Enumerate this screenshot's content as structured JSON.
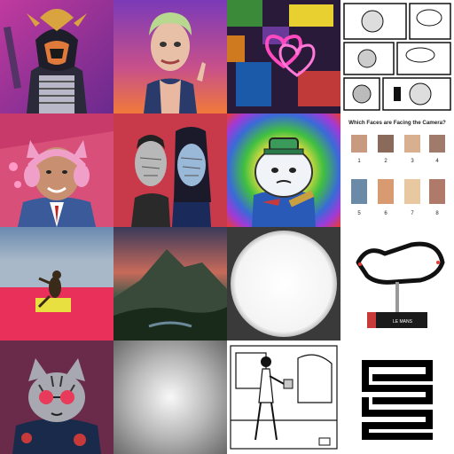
{
  "tiles": [
    {
      "index": 1,
      "icon": "samurai-robot-image"
    },
    {
      "index": 2,
      "icon": "caricature-portrait-image"
    },
    {
      "index": 3,
      "icon": "neon-glitch-hearts-image"
    },
    {
      "index": 4,
      "icon": "manga-page-image"
    },
    {
      "index": 5,
      "icon": "cat-headphones-graffiti-image"
    },
    {
      "index": 6,
      "icon": "distorted-faces-image"
    },
    {
      "index": 7,
      "icon": "cartoon-snowman-rainbow-image"
    },
    {
      "index": 8,
      "icon": "faces-grid-image",
      "title": "Which Faces are Facing the Camera?",
      "numbers": [
        "1",
        "2",
        "3",
        "4",
        "5",
        "6",
        "7",
        "8"
      ]
    },
    {
      "index": 9,
      "icon": "figure-on-red-image"
    },
    {
      "index": 10,
      "icon": "mountain-sunset-image"
    },
    {
      "index": 11,
      "icon": "white-circle-image"
    },
    {
      "index": 12,
      "icon": "race-track-model-image",
      "caption": "LE MANS"
    },
    {
      "index": 13,
      "icon": "cat-sunglasses-image"
    },
    {
      "index": 14,
      "icon": "gray-radial-gradient-image"
    },
    {
      "index": 15,
      "icon": "line-art-figure-image"
    },
    {
      "index": 16,
      "icon": "maze-glyph-image"
    }
  ]
}
